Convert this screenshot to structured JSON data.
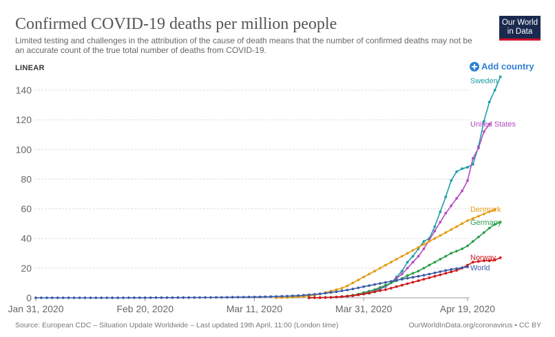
{
  "header": {
    "title": "Confirmed COVID-19 deaths per million people",
    "subtitle": "Limited testing and challenges in the attribution of the cause of death means that the number of confirmed deaths may not be an accurate count of the true total number of deaths from COVID-19.",
    "logo_line1": "Our World",
    "logo_line2": "in Data",
    "scale_label": "LINEAR",
    "add_country_label": "Add country"
  },
  "footer": {
    "source": "Source: European CDC – Situation Update Worldwide – Last updated 19th April, 11:00 (London time)",
    "credit": "OurWorldInData.org/coronavirus • CC BY"
  },
  "chart_data": {
    "type": "line",
    "title": "Confirmed COVID-19 deaths per million people",
    "xlabel": "",
    "ylabel": "",
    "x_start": "Jan 31, 2020",
    "x_end": "Apr 19, 2020",
    "x_days": 79,
    "ylim": [
      0,
      150
    ],
    "y_ticks": [
      0,
      20,
      40,
      60,
      80,
      100,
      120,
      140
    ],
    "x_ticks": [
      {
        "day": 0,
        "label": "Jan 31, 2020"
      },
      {
        "day": 20,
        "label": "Feb 20, 2020"
      },
      {
        "day": 40,
        "label": "Mar 11, 2020"
      },
      {
        "day": 60,
        "label": "Mar 31, 2020"
      },
      {
        "day": 79,
        "label": "Apr 19, 2020"
      }
    ],
    "grid": true,
    "series": [
      {
        "name": "Sweden",
        "color": "#1b9ea6",
        "start_day": 50,
        "values": [
          0,
          0.1,
          0.1,
          0.2,
          0.3,
          0.5,
          0.8,
          1,
          1.3,
          2,
          2.5,
          3,
          4,
          6,
          7.5,
          10,
          14,
          18,
          24,
          28,
          33,
          38,
          40,
          48,
          58,
          68,
          79,
          85,
          87,
          88,
          90,
          102,
          119,
          132,
          140,
          149
        ]
      },
      {
        "name": "United States",
        "color": "#b24ac1",
        "start_day": 50,
        "values": [
          0,
          0.1,
          0.1,
          0.2,
          0.3,
          0.5,
          0.8,
          1,
          1.5,
          2,
          3,
          4,
          5,
          6.5,
          8,
          10,
          13,
          16,
          20,
          24,
          28,
          33,
          39,
          45,
          51,
          57,
          62,
          67,
          72,
          79,
          94,
          101,
          112,
          117
        ]
      },
      {
        "name": "Denmark",
        "color": "#e39b12",
        "start_day": 44,
        "values": [
          0,
          0.1,
          0.2,
          0.4,
          0.6,
          0.9,
          1.3,
          1.8,
          2.5,
          3.5,
          4.5,
          5.5,
          6.5,
          8,
          10,
          12,
          14,
          16,
          18,
          20,
          22,
          24,
          26,
          28,
          30,
          32,
          34,
          36,
          38,
          40,
          42,
          44,
          46,
          48,
          50,
          52,
          53.5,
          55,
          56.5,
          58,
          59.5
        ]
      },
      {
        "name": "Germany",
        "color": "#2a9f49",
        "start_day": 50,
        "values": [
          0,
          0.1,
          0.1,
          0.2,
          0.3,
          0.5,
          0.8,
          1.2,
          1.8,
          2.5,
          3.5,
          4.5,
          5.5,
          7,
          8.5,
          10,
          11.5,
          13,
          15,
          16.5,
          18,
          20,
          22,
          24,
          26,
          28,
          30,
          31.5,
          33,
          35,
          38,
          41,
          44,
          47,
          49.5,
          51
        ]
      },
      {
        "name": "Norway",
        "color": "#d31415",
        "start_day": 50,
        "values": [
          0,
          0.1,
          0.1,
          0.2,
          0.3,
          0.5,
          0.8,
          1.1,
          1.5,
          2,
          2.6,
          3.2,
          4,
          4.8,
          5.5,
          6.5,
          7.5,
          8.5,
          9.5,
          10.5,
          11.5,
          12.5,
          13.5,
          14.5,
          15.5,
          16.5,
          17.5,
          18.5,
          20,
          22,
          24,
          24.5,
          25,
          25,
          25.5,
          27
        ]
      },
      {
        "name": "World",
        "color": "#3a5ba7",
        "start_day": 0,
        "values": [
          0,
          0,
          0,
          0,
          0,
          0,
          0,
          0,
          0,
          0,
          0,
          0,
          0.01,
          0.01,
          0.01,
          0.02,
          0.02,
          0.03,
          0.03,
          0.04,
          0.05,
          0.06,
          0.07,
          0.08,
          0.09,
          0.1,
          0.12,
          0.14,
          0.16,
          0.18,
          0.2,
          0.22,
          0.25,
          0.28,
          0.3,
          0.33,
          0.36,
          0.4,
          0.45,
          0.5,
          0.55,
          0.6,
          0.7,
          0.8,
          0.9,
          1.0,
          1.1,
          1.3,
          1.5,
          1.7,
          2,
          2.3,
          2.7,
          3.1,
          3.6,
          4.1,
          4.7,
          5.3,
          6,
          6.7,
          7.5,
          8.2,
          9,
          9.7,
          10.4,
          11.1,
          11.8,
          12.5,
          13.2,
          13.8,
          14.5,
          15.2,
          16,
          16.8,
          17.6,
          18.4,
          19.1,
          19.7,
          20.3,
          20.8
        ]
      }
    ]
  }
}
